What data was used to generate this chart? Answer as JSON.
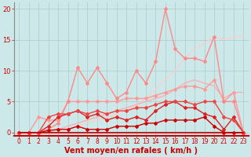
{
  "background_color": "#cce8e8",
  "grid_color": "#aacccc",
  "xlabel": "Vent moyen/en rafales ( km/h )",
  "xlabel_color": "#cc0000",
  "tick_color": "#cc0000",
  "xlim": [
    -0.5,
    23.5
  ],
  "ylim": [
    -0.5,
    21
  ],
  "yticks": [
    0,
    5,
    10,
    15,
    20
  ],
  "xticks": [
    0,
    1,
    2,
    3,
    4,
    5,
    6,
    7,
    8,
    9,
    10,
    11,
    12,
    13,
    14,
    15,
    16,
    17,
    18,
    19,
    20,
    21,
    22,
    23
  ],
  "lines": [
    {
      "x": [
        0,
        1,
        2,
        3,
        4,
        5,
        6,
        7,
        8,
        9,
        10,
        11,
        12,
        13,
        14,
        15,
        16,
        17,
        18,
        19,
        20,
        21,
        22,
        23
      ],
      "y": [
        0,
        0,
        0,
        0,
        0,
        0,
        0,
        0,
        0,
        0,
        0,
        0,
        0,
        0,
        0,
        0,
        0,
        0,
        0,
        0,
        0,
        0,
        0,
        0
      ],
      "color": "#bb0000",
      "linewidth": 1.2,
      "marker": null,
      "zorder": 5
    },
    {
      "x": [
        0,
        1,
        2,
        3,
        4,
        5,
        6,
        7,
        8,
        9,
        10,
        11,
        12,
        13,
        14,
        15,
        16,
        17,
        18,
        19,
        20,
        21,
        22,
        23
      ],
      "y": [
        0,
        0,
        0,
        0.3,
        0.5,
        0.5,
        1.0,
        0.5,
        0.5,
        0.5,
        1.0,
        1.0,
        1.0,
        1.5,
        1.5,
        2.0,
        2.0,
        2.0,
        2.0,
        2.5,
        1.0,
        0,
        0,
        0
      ],
      "color": "#cc0000",
      "linewidth": 1.0,
      "marker": "D",
      "markersize": 2,
      "zorder": 4
    },
    {
      "x": [
        0,
        1,
        2,
        3,
        4,
        5,
        6,
        7,
        8,
        9,
        10,
        11,
        12,
        13,
        14,
        15,
        16,
        17,
        18,
        19,
        20,
        21,
        22,
        23
      ],
      "y": [
        0,
        0,
        0,
        1.0,
        2.5,
        3.0,
        3.5,
        2.5,
        3.0,
        2.0,
        2.5,
        2.0,
        2.5,
        2.0,
        3.5,
        4.5,
        5.0,
        4.0,
        4.0,
        3.0,
        2.5,
        0.5,
        2.5,
        0
      ],
      "color": "#dd2222",
      "linewidth": 1.0,
      "marker": "D",
      "markersize": 2,
      "zorder": 4
    },
    {
      "x": [
        0,
        1,
        2,
        3,
        4,
        5,
        6,
        7,
        8,
        9,
        10,
        11,
        12,
        13,
        14,
        15,
        16,
        17,
        18,
        19,
        20,
        21,
        22,
        23
      ],
      "y": [
        0,
        0,
        0,
        2.5,
        3.0,
        3.0,
        3.5,
        3.0,
        3.5,
        3.0,
        3.5,
        3.5,
        4.0,
        4.0,
        4.5,
        5.0,
        5.0,
        5.0,
        4.5,
        5.0,
        5.0,
        2.5,
        2.0,
        0
      ],
      "color": "#ee4444",
      "linewidth": 1.0,
      "marker": "D",
      "markersize": 2,
      "zorder": 4
    },
    {
      "x": [
        0,
        1,
        2,
        3,
        4,
        5,
        6,
        7,
        8,
        9,
        10,
        11,
        12,
        13,
        14,
        15,
        16,
        17,
        18,
        19,
        20,
        21,
        22,
        23
      ],
      "y": [
        0,
        0,
        0,
        0,
        0,
        0.5,
        1.0,
        1.5,
        2.0,
        2.5,
        3.0,
        3.5,
        4.5,
        5.5,
        7.0,
        8.5,
        10.0,
        12.0,
        13.5,
        14.5,
        15.5,
        15.0,
        15.5,
        15.5
      ],
      "color": "#ffcccc",
      "linewidth": 0.9,
      "marker": null,
      "zorder": 2
    },
    {
      "x": [
        0,
        1,
        2,
        3,
        4,
        5,
        6,
        7,
        8,
        9,
        10,
        11,
        12,
        13,
        14,
        15,
        16,
        17,
        18,
        19,
        20,
        21,
        22,
        23
      ],
      "y": [
        0,
        0,
        0,
        0,
        0.5,
        1.0,
        1.5,
        2.0,
        2.5,
        3.0,
        3.5,
        4.0,
        4.5,
        5.0,
        5.5,
        6.0,
        7.0,
        8.0,
        8.5,
        8.0,
        7.5,
        5.5,
        6.5,
        6.5
      ],
      "color": "#ffaaaa",
      "linewidth": 0.9,
      "marker": null,
      "zorder": 2
    },
    {
      "x": [
        0,
        1,
        2,
        3,
        4,
        5,
        6,
        7,
        8,
        9,
        10,
        11,
        12,
        13,
        14,
        15,
        16,
        17,
        18,
        19,
        20,
        21,
        22,
        23
      ],
      "y": [
        0,
        0,
        2.5,
        2.0,
        2.0,
        5.0,
        5.0,
        5.0,
        5.0,
        5.0,
        5.0,
        5.5,
        5.5,
        5.5,
        6.0,
        6.5,
        7.0,
        7.5,
        7.5,
        7.0,
        8.5,
        5.0,
        6.5,
        0
      ],
      "color": "#ff9999",
      "linewidth": 1.0,
      "marker": "D",
      "markersize": 2,
      "zorder": 3
    },
    {
      "x": [
        0,
        1,
        2,
        3,
        4,
        5,
        6,
        7,
        8,
        9,
        10,
        11,
        12,
        13,
        14,
        15,
        16,
        17,
        18,
        19,
        20,
        21,
        22,
        23
      ],
      "y": [
        0,
        0,
        0,
        0.5,
        1.5,
        5.0,
        10.5,
        8.0,
        10.5,
        8.0,
        5.5,
        6.5,
        10.0,
        8.0,
        11.5,
        20.0,
        13.5,
        12.0,
        12.0,
        11.5,
        15.5,
        5.0,
        5.0,
        0
      ],
      "color": "#ff8888",
      "linewidth": 1.0,
      "marker": "D",
      "markersize": 2,
      "zorder": 3
    }
  ]
}
